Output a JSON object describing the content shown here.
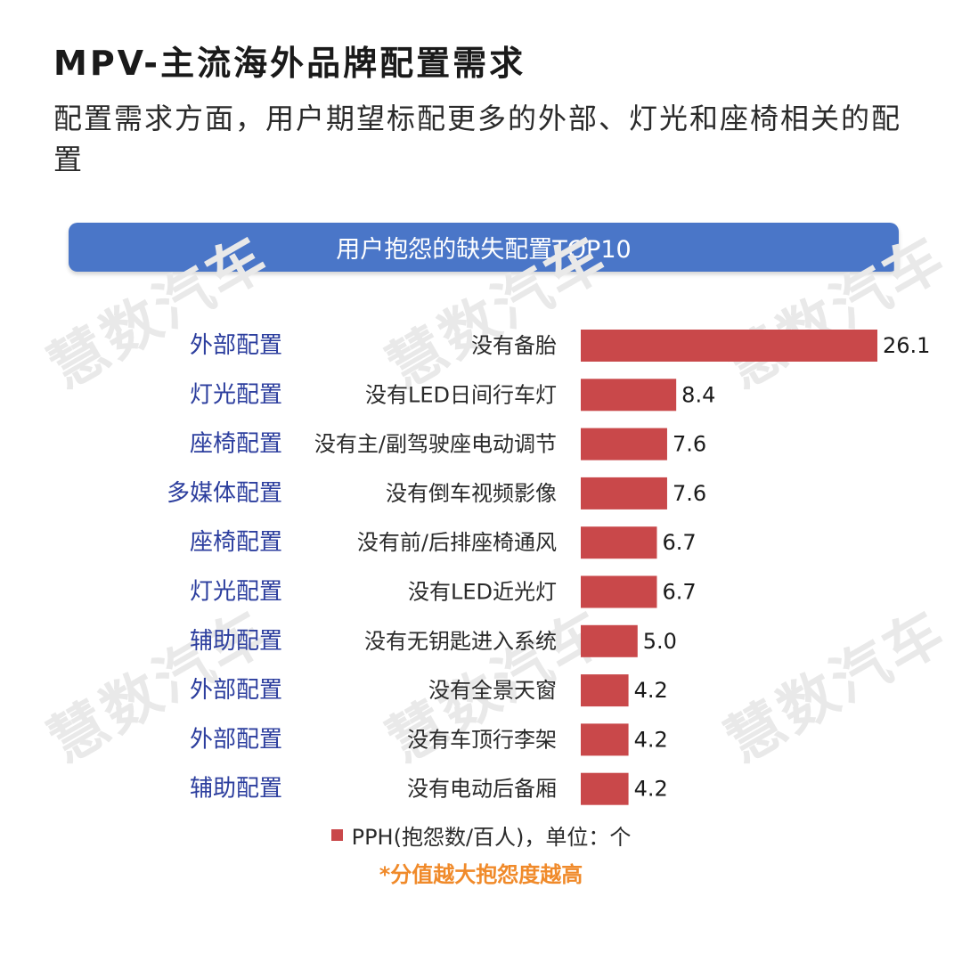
{
  "header": {
    "title": "MPV-主流海外品牌配置需求",
    "subtitle": "配置需求方面，用户期望标配更多的外部、灯光和座椅相关的配置"
  },
  "banner": {
    "label": "用户抱怨的缺失配置TOP10"
  },
  "watermark": {
    "text": "慧数汽车"
  },
  "chart_data": {
    "type": "bar",
    "orientation": "horizontal",
    "title": "用户抱怨的缺失配置TOP10",
    "groups": [
      "外部配置",
      "灯光配置",
      "座椅配置",
      "多媒体配置",
      "座椅配置",
      "灯光配置",
      "辅助配置",
      "外部配置",
      "外部配置",
      "辅助配置"
    ],
    "categories": [
      "没有备胎",
      "没有LED日间行车灯",
      "没有主/副驾驶座电动调节",
      "没有倒车视频影像",
      "没有前/后排座椅通风",
      "没有LED近光灯",
      "没有无钥匙进入系统",
      "没有全景天窗",
      "没有车顶行李架",
      "没有电动后备厢"
    ],
    "values_display": [
      "26.1",
      "8.4",
      "7.6",
      "7.6",
      "6.7",
      "6.7",
      "5.0",
      "4.2",
      "4.2",
      "4.2"
    ],
    "series": [
      {
        "name": "PPH(抱怨数/百人)，单位：个",
        "values": [
          26.1,
          8.4,
          7.6,
          7.6,
          6.7,
          6.7,
          5.0,
          4.2,
          4.2,
          4.2
        ]
      }
    ],
    "xlim": [
      0,
      26.1
    ],
    "grid": false,
    "legend_position": "bottom-center",
    "note": "*分值越大抱怨度越高",
    "colors": {
      "bar": "#c9484a",
      "group_label": "#2c3e9e",
      "value_label": "#1a1a1a",
      "category_label": "#2a2a2a"
    }
  },
  "colors": {
    "banner": "#4a76c8",
    "note": "#f08a2a",
    "background": "#ffffff"
  }
}
